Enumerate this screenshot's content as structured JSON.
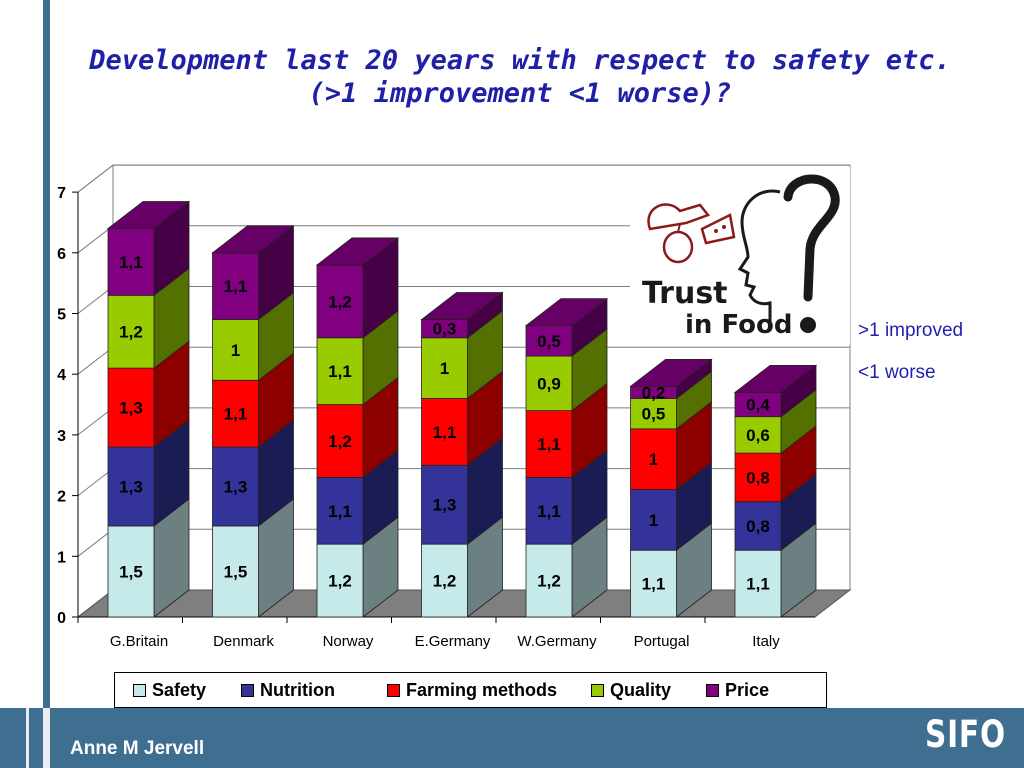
{
  "slide": {
    "title": "Development last 20 years with respect to safety etc. (>1 improvement <1 worse)?",
    "note_improved": ">1 improved",
    "note_worse": "<1 worse",
    "author": "Anne M Jervell",
    "brand": "SIFO"
  },
  "logo": {
    "line1": "Trust",
    "line2": "in Food"
  },
  "colors": {
    "Safety": "#c6e9ea",
    "Nutrition": "#33339a",
    "Farming methods": "#ff0000",
    "Quality": "#99cc00",
    "Price": "#800080"
  },
  "chart_data": {
    "type": "bar",
    "stacked": true,
    "categories": [
      "G.Britain",
      "Denmark",
      "Norway",
      "E.Germany",
      "W.Germany",
      "Portugal",
      "Italy"
    ],
    "series": [
      {
        "name": "Safety",
        "values": [
          1.5,
          1.5,
          1.2,
          1.2,
          1.2,
          1.1,
          1.1
        ],
        "labels": [
          "1,5",
          "1,5",
          "1,2",
          "1,2",
          "1,2",
          "1,1",
          "1,1"
        ]
      },
      {
        "name": "Nutrition",
        "values": [
          1.3,
          1.3,
          1.1,
          1.3,
          1.1,
          1,
          0.8
        ],
        "labels": [
          "1,3",
          "1,3",
          "1,1",
          "1,3",
          "1,1",
          "1",
          "0,8"
        ]
      },
      {
        "name": "Farming methods",
        "values": [
          1.3,
          1.1,
          1.2,
          1.1,
          1.1,
          1,
          0.8
        ],
        "labels": [
          "1,3",
          "1,1",
          "1,2",
          "1,1",
          "1,1",
          "1",
          "0,8"
        ]
      },
      {
        "name": "Quality",
        "values": [
          1.2,
          1,
          1.1,
          1,
          0.9,
          0.5,
          0.6
        ],
        "labels": [
          "1,2",
          "1",
          "1,1",
          "1",
          "0,9",
          "0,5",
          "0,6"
        ]
      },
      {
        "name": "Price",
        "values": [
          1.1,
          1.1,
          1.2,
          0.3,
          0.5,
          0.2,
          0.4
        ],
        "labels": [
          "1,1",
          "1,1",
          "1,2",
          "0,3",
          "0,5",
          "0,2",
          "0,4"
        ]
      }
    ],
    "yticks": [
      "0",
      "1",
      "2",
      "3",
      "4",
      "5",
      "6",
      "7"
    ],
    "ylim": [
      0,
      7
    ],
    "grid": true,
    "legend_position": "bottom"
  }
}
